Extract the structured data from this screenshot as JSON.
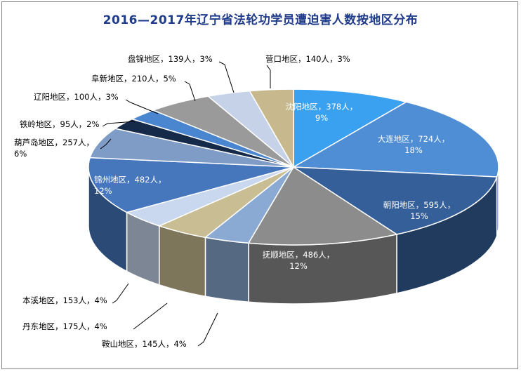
{
  "chart_data": {
    "type": "pie",
    "title": "2016—2017年辽宁省法轮功学员遭迫害人数按地区分布",
    "slices": [
      {
        "label": "沈阳地区",
        "value": 378,
        "unit": "人",
        "percent": "9%",
        "color": "#3aa0f0"
      },
      {
        "label": "大连地区",
        "value": 724,
        "unit": "人",
        "percent": "18%",
        "color": "#4f8dd4"
      },
      {
        "label": "朝阳地区",
        "value": 595,
        "unit": "人",
        "percent": "15%",
        "color": "#355f99"
      },
      {
        "label": "抚顺地区",
        "value": 486,
        "unit": "人",
        "percent": "12%",
        "color": "#8c8c8c"
      },
      {
        "label": "鞍山地区",
        "value": 145,
        "unit": "人",
        "percent": "4%",
        "color": "#8aaad3"
      },
      {
        "label": "丹东地区",
        "value": 175,
        "unit": "人",
        "percent": "4%",
        "color": "#c9be93"
      },
      {
        "label": "本溪地区",
        "value": 153,
        "unit": "人",
        "percent": "4%",
        "color": "#c9d8ee"
      },
      {
        "label": "锦州地区",
        "value": 482,
        "unit": "人",
        "percent": "12%",
        "color": "#4677bd"
      },
      {
        "label": "葫芦岛地区",
        "value": 257,
        "unit": "人",
        "percent": "6%",
        "color": "#7f9cc6"
      },
      {
        "label": "铁岭地区",
        "value": 95,
        "unit": "人",
        "percent": "2%",
        "color": "#152a48"
      },
      {
        "label": "辽阳地区",
        "value": 100,
        "unit": "人",
        "percent": "3%",
        "color": "#4a86d0"
      },
      {
        "label": "阜新地区",
        "value": 210,
        "unit": "人",
        "percent": "5%",
        "color": "#9a9a9a"
      },
      {
        "label": "盘锦地区",
        "value": 139,
        "unit": "人",
        "percent": "3%",
        "color": "#c6d2e8"
      },
      {
        "label": "营口地区",
        "value": 140,
        "unit": "人",
        "percent": "3%",
        "color": "#c7b98d"
      }
    ]
  }
}
